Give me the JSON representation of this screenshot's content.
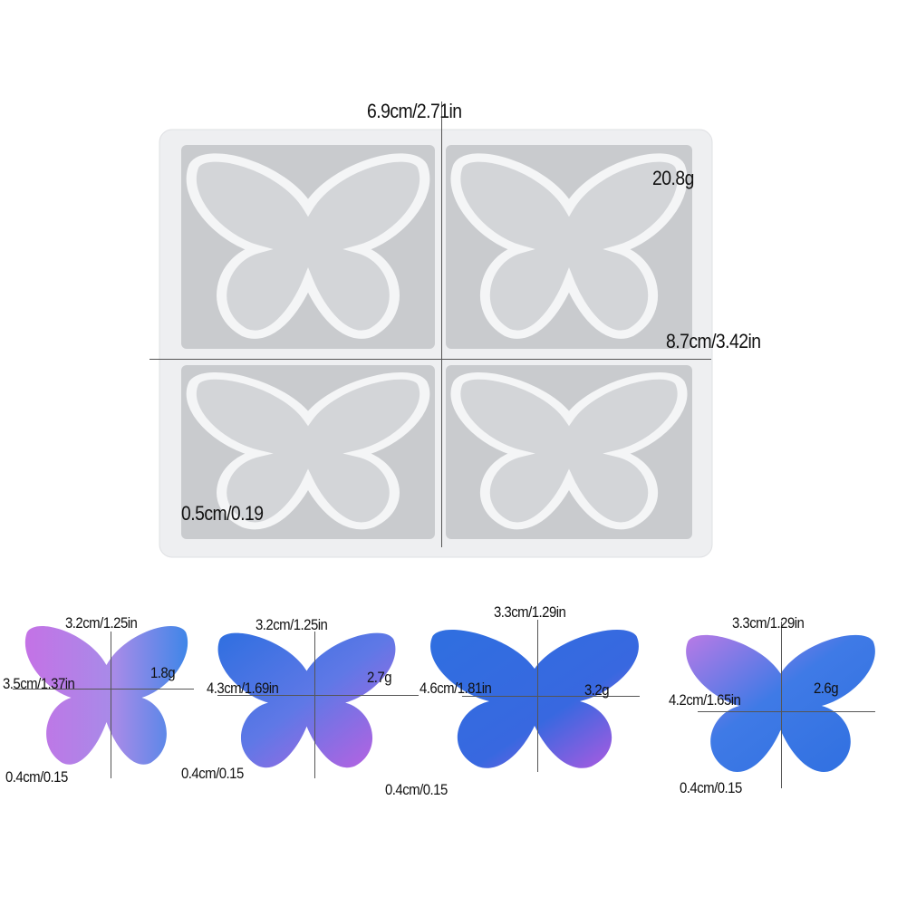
{
  "mold": {
    "width_label": "6.9cm/2.71in",
    "height_label": "8.7cm/3.42in",
    "weight_label": "20.8g",
    "thickness_label": "0.5cm/0.19",
    "color": "#eeeff1",
    "cavity_color": "#c9cbce"
  },
  "pieces": [
    {
      "height_label": "3.2cm/1.25in",
      "width_label": "3.5cm/1.37in",
      "weight_label": "1.8g",
      "thickness_label": "0.4cm/0.15"
    },
    {
      "height_label": "3.2cm/1.25in",
      "width_label": "4.3cm/1.69in",
      "weight_label": "2.7g",
      "thickness_label": "0.4cm/0.15"
    },
    {
      "height_label": "3.3cm/1.29in",
      "width_label": "4.6cm/1.81in",
      "weight_label": "3.2g",
      "thickness_label": "0.4cm/0.15"
    },
    {
      "height_label": "3.3cm/1.29in",
      "width_label": "4.2cm/1.65in",
      "weight_label": "2.6g",
      "thickness_label": "0.4cm/0.15"
    }
  ],
  "colors": {
    "blue": "#2f6fe0",
    "purple": "#c472e6"
  }
}
